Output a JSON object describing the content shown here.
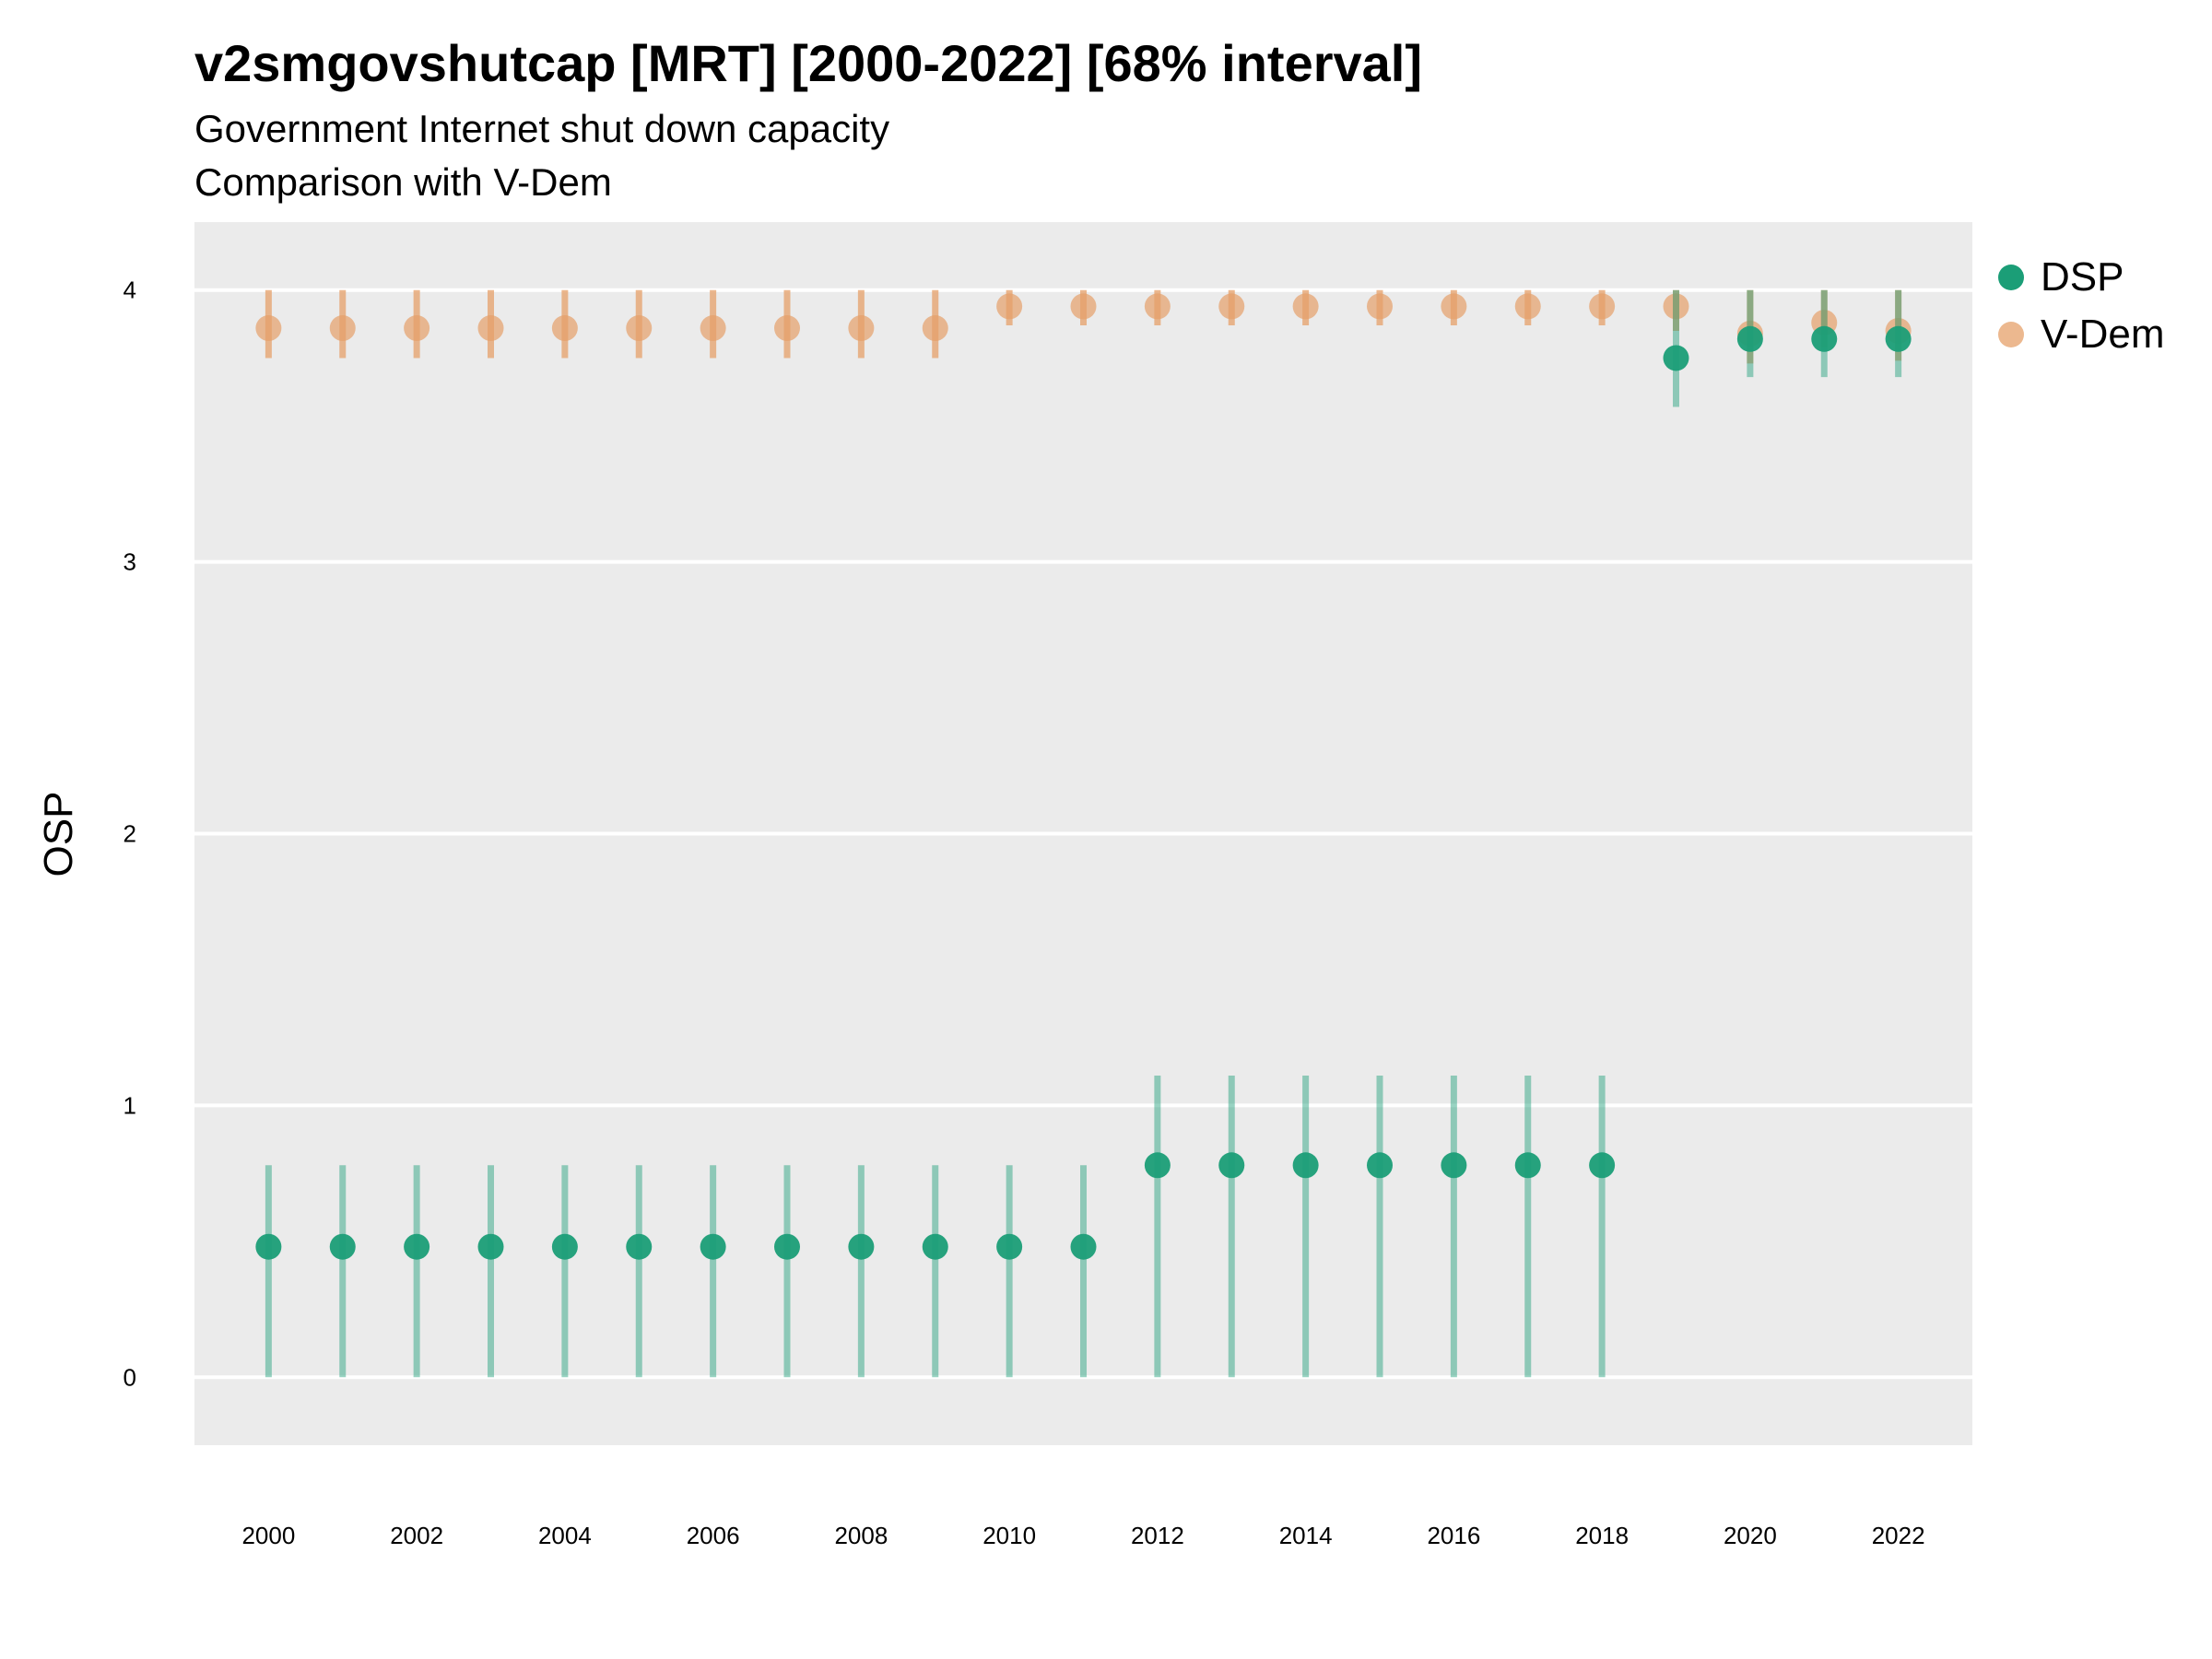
{
  "title": "v2smgovshutcap [MRT] [2000-2022] [68% interval]",
  "subtitle_line1": "Government Internet shut down capacity",
  "subtitle_line2": "Comparison with V-Dem",
  "chart_data": {
    "type": "scatter",
    "title": "v2smgovshutcap [MRT] [2000-2022] [68% interval]",
    "subtitle": "Government Internet shut down capacity / Comparison with V-Dem",
    "xlabel": "",
    "ylabel": "OSP",
    "xlim": [
      1999,
      2023
    ],
    "ylim": [
      -0.25,
      4.25
    ],
    "x_ticks": [
      2000,
      2002,
      2004,
      2006,
      2008,
      2010,
      2012,
      2014,
      2016,
      2018,
      2020,
      2022
    ],
    "y_ticks": [
      0,
      1,
      2,
      3,
      4
    ],
    "grid": true,
    "legend_position": "right",
    "series": [
      {
        "name": "DSP",
        "color": "#1b9e77",
        "points": [
          {
            "x": 2000,
            "y": 0.48,
            "lo": 0.0,
            "hi": 0.78
          },
          {
            "x": 2001,
            "y": 0.48,
            "lo": 0.0,
            "hi": 0.78
          },
          {
            "x": 2002,
            "y": 0.48,
            "lo": 0.0,
            "hi": 0.78
          },
          {
            "x": 2003,
            "y": 0.48,
            "lo": 0.0,
            "hi": 0.78
          },
          {
            "x": 2004,
            "y": 0.48,
            "lo": 0.0,
            "hi": 0.78
          },
          {
            "x": 2005,
            "y": 0.48,
            "lo": 0.0,
            "hi": 0.78
          },
          {
            "x": 2006,
            "y": 0.48,
            "lo": 0.0,
            "hi": 0.78
          },
          {
            "x": 2007,
            "y": 0.48,
            "lo": 0.0,
            "hi": 0.78
          },
          {
            "x": 2008,
            "y": 0.48,
            "lo": 0.0,
            "hi": 0.78
          },
          {
            "x": 2009,
            "y": 0.48,
            "lo": 0.0,
            "hi": 0.78
          },
          {
            "x": 2010,
            "y": 0.48,
            "lo": 0.0,
            "hi": 0.78
          },
          {
            "x": 2011,
            "y": 0.48,
            "lo": 0.0,
            "hi": 0.78
          },
          {
            "x": 2012,
            "y": 0.78,
            "lo": 0.0,
            "hi": 1.11
          },
          {
            "x": 2013,
            "y": 0.78,
            "lo": 0.0,
            "hi": 1.11
          },
          {
            "x": 2014,
            "y": 0.78,
            "lo": 0.0,
            "hi": 1.11
          },
          {
            "x": 2015,
            "y": 0.78,
            "lo": 0.0,
            "hi": 1.11
          },
          {
            "x": 2016,
            "y": 0.78,
            "lo": 0.0,
            "hi": 1.11
          },
          {
            "x": 2017,
            "y": 0.78,
            "lo": 0.0,
            "hi": 1.11
          },
          {
            "x": 2018,
            "y": 0.78,
            "lo": 0.0,
            "hi": 1.11
          },
          {
            "x": 2019,
            "y": 3.75,
            "lo": 3.57,
            "hi": 4.0
          },
          {
            "x": 2020,
            "y": 3.82,
            "lo": 3.68,
            "hi": 4.0
          },
          {
            "x": 2021,
            "y": 3.82,
            "lo": 3.68,
            "hi": 4.0
          },
          {
            "x": 2022,
            "y": 3.82,
            "lo": 3.68,
            "hi": 4.0
          }
        ]
      },
      {
        "name": "V-Dem",
        "color": "#e6a06a",
        "points": [
          {
            "x": 2000,
            "y": 3.86,
            "lo": 3.75,
            "hi": 4.0
          },
          {
            "x": 2001,
            "y": 3.86,
            "lo": 3.75,
            "hi": 4.0
          },
          {
            "x": 2002,
            "y": 3.86,
            "lo": 3.75,
            "hi": 4.0
          },
          {
            "x": 2003,
            "y": 3.86,
            "lo": 3.75,
            "hi": 4.0
          },
          {
            "x": 2004,
            "y": 3.86,
            "lo": 3.75,
            "hi": 4.0
          },
          {
            "x": 2005,
            "y": 3.86,
            "lo": 3.75,
            "hi": 4.0
          },
          {
            "x": 2006,
            "y": 3.86,
            "lo": 3.75,
            "hi": 4.0
          },
          {
            "x": 2007,
            "y": 3.86,
            "lo": 3.75,
            "hi": 4.0
          },
          {
            "x": 2008,
            "y": 3.86,
            "lo": 3.75,
            "hi": 4.0
          },
          {
            "x": 2009,
            "y": 3.86,
            "lo": 3.75,
            "hi": 4.0
          },
          {
            "x": 2010,
            "y": 3.94,
            "lo": 3.87,
            "hi": 4.0
          },
          {
            "x": 2011,
            "y": 3.94,
            "lo": 3.87,
            "hi": 4.0
          },
          {
            "x": 2012,
            "y": 3.94,
            "lo": 3.87,
            "hi": 4.0
          },
          {
            "x": 2013,
            "y": 3.94,
            "lo": 3.87,
            "hi": 4.0
          },
          {
            "x": 2014,
            "y": 3.94,
            "lo": 3.87,
            "hi": 4.0
          },
          {
            "x": 2015,
            "y": 3.94,
            "lo": 3.87,
            "hi": 4.0
          },
          {
            "x": 2016,
            "y": 3.94,
            "lo": 3.87,
            "hi": 4.0
          },
          {
            "x": 2017,
            "y": 3.94,
            "lo": 3.87,
            "hi": 4.0
          },
          {
            "x": 2018,
            "y": 3.94,
            "lo": 3.87,
            "hi": 4.0
          },
          {
            "x": 2019,
            "y": 3.94,
            "lo": 3.85,
            "hi": 4.0
          },
          {
            "x": 2020,
            "y": 3.84,
            "lo": 3.73,
            "hi": 4.0
          },
          {
            "x": 2021,
            "y": 3.88,
            "lo": 3.79,
            "hi": 4.0
          },
          {
            "x": 2022,
            "y": 3.85,
            "lo": 3.74,
            "hi": 4.0
          }
        ]
      }
    ]
  }
}
